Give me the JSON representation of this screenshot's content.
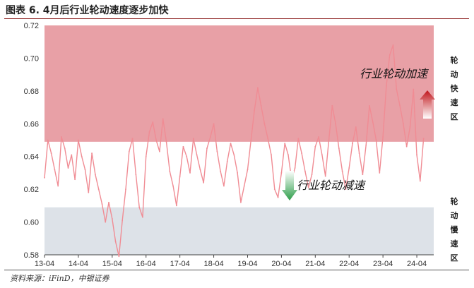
{
  "header": {
    "title": "图表 6. 4月后行业轮动速度逐步加快"
  },
  "footer": {
    "source": "资料来源：iFinD，中银证券"
  },
  "zones": {
    "fast_label": "轮动快速区",
    "slow_label": "轮动慢速区",
    "fast_color": "#e8a0a6",
    "slow_color": "#dde2e8"
  },
  "annotations": {
    "accelerate": "行业轮动加速",
    "decelerate": "行业轮动减速",
    "accelerate_arrow_color": "#c0141a",
    "decelerate_arrow_color": "#2e9e4a"
  },
  "chart_data": {
    "type": "line",
    "title": "",
    "xlabel": "",
    "ylabel": "",
    "ylim": [
      0.58,
      0.72
    ],
    "yticks": [
      "0.58",
      "0.60",
      "0.62",
      "0.64",
      "0.66",
      "0.68",
      "0.70",
      "0.72"
    ],
    "xtick_labels": [
      "13-04",
      "14-04",
      "15-04",
      "16-04",
      "17-04",
      "18-04",
      "19-04",
      "20-04",
      "21-04",
      "22-04",
      "23-04",
      "24-04"
    ],
    "xlim": [
      2013.0,
      2024.5
    ],
    "bands": [
      {
        "name": "轮动快速区",
        "from": 0.649,
        "to": 0.72
      },
      {
        "name": "轮动慢速区",
        "from": 0.58,
        "to": 0.609
      }
    ],
    "series": [
      {
        "color": "#f08c94",
        "x": [
          2013.0,
          2013.1,
          2013.2,
          2013.3,
          2013.4,
          2013.5,
          2013.6,
          2013.7,
          2013.8,
          2013.9,
          2014.0,
          2014.1,
          2014.2,
          2014.3,
          2014.4,
          2014.5,
          2014.6,
          2014.7,
          2014.8,
          2014.9,
          2015.0,
          2015.1,
          2015.2,
          2015.3,
          2015.4,
          2015.5,
          2015.6,
          2015.7,
          2015.8,
          2015.9,
          2016.0,
          2016.1,
          2016.2,
          2016.3,
          2016.4,
          2016.5,
          2016.6,
          2016.7,
          2016.8,
          2016.9,
          2017.0,
          2017.1,
          2017.2,
          2017.3,
          2017.4,
          2017.5,
          2017.6,
          2017.7,
          2017.8,
          2017.9,
          2018.0,
          2018.1,
          2018.2,
          2018.3,
          2018.4,
          2018.5,
          2018.6,
          2018.7,
          2018.8,
          2018.9,
          2019.0,
          2019.1,
          2019.2,
          2019.3,
          2019.4,
          2019.5,
          2019.6,
          2019.7,
          2019.8,
          2019.9,
          2020.0,
          2020.1,
          2020.2,
          2020.3,
          2020.4,
          2020.5,
          2020.6,
          2020.7,
          2020.8,
          2020.9,
          2021.0,
          2021.1,
          2021.2,
          2021.3,
          2021.4,
          2021.5,
          2021.6,
          2021.7,
          2021.8,
          2021.9,
          2022.0,
          2022.1,
          2022.2,
          2022.3,
          2022.4,
          2022.5,
          2022.6,
          2022.7,
          2022.8,
          2022.9,
          2023.0,
          2023.1,
          2023.2,
          2023.3,
          2023.4,
          2023.5,
          2023.6,
          2023.7,
          2023.8,
          2023.9,
          2024.0,
          2024.1,
          2024.2
        ],
        "y": [
          0.627,
          0.65,
          0.642,
          0.632,
          0.622,
          0.652,
          0.645,
          0.633,
          0.641,
          0.626,
          0.65,
          0.64,
          0.632,
          0.618,
          0.642,
          0.629,
          0.62,
          0.611,
          0.6,
          0.612,
          0.602,
          0.588,
          0.579,
          0.601,
          0.62,
          0.643,
          0.651,
          0.629,
          0.609,
          0.603,
          0.64,
          0.655,
          0.661,
          0.65,
          0.643,
          0.663,
          0.649,
          0.631,
          0.622,
          0.61,
          0.628,
          0.646,
          0.64,
          0.63,
          0.651,
          0.641,
          0.632,
          0.624,
          0.645,
          0.652,
          0.66,
          0.643,
          0.631,
          0.622,
          0.637,
          0.648,
          0.641,
          0.63,
          0.612,
          0.622,
          0.632,
          0.65,
          0.668,
          0.682,
          0.671,
          0.66,
          0.651,
          0.641,
          0.62,
          0.615,
          0.63,
          0.648,
          0.641,
          0.626,
          0.633,
          0.651,
          0.642,
          0.631,
          0.621,
          0.629,
          0.646,
          0.652,
          0.641,
          0.628,
          0.65,
          0.671,
          0.66,
          0.645,
          0.631,
          0.62,
          0.633,
          0.648,
          0.658,
          0.642,
          0.629,
          0.647,
          0.671,
          0.661,
          0.65,
          0.63,
          0.652,
          0.683,
          0.702,
          0.708,
          0.681,
          0.671,
          0.66,
          0.646,
          0.658,
          0.681,
          0.641,
          0.625,
          0.651
        ]
      }
    ]
  }
}
